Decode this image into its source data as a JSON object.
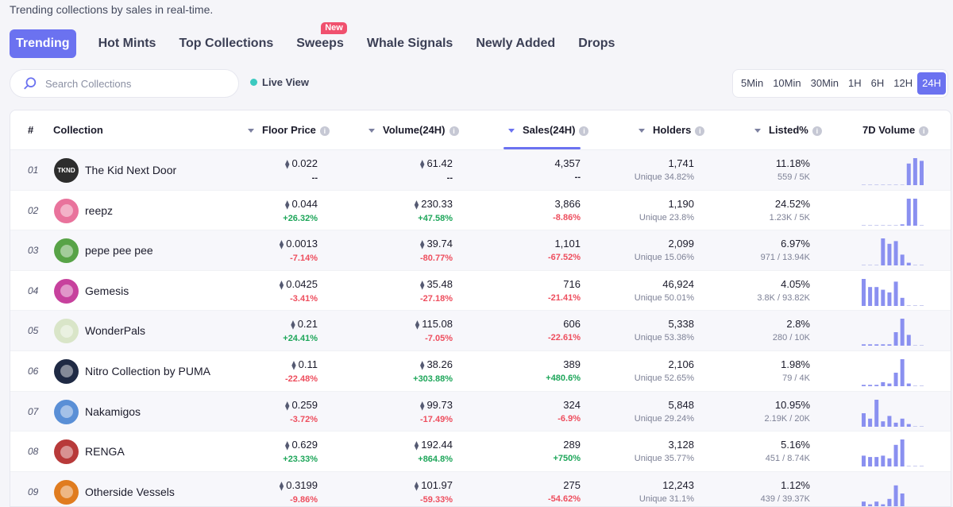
{
  "subtitle": "Trending collections by sales in real-time.",
  "tabs": [
    {
      "label": "Trending",
      "active": true
    },
    {
      "label": "Hot Mints"
    },
    {
      "label": "Top Collections"
    },
    {
      "label": "Sweeps",
      "badge": "New"
    },
    {
      "label": "Whale Signals"
    },
    {
      "label": "Newly Added"
    },
    {
      "label": "Drops"
    }
  ],
  "search": {
    "placeholder": "Search Collections",
    "value": ""
  },
  "live_view": "Live View",
  "timeframes": [
    "5Min",
    "10Min",
    "30Min",
    "1H",
    "6H",
    "12H",
    "24H"
  ],
  "active_timeframe": "24H",
  "columns": {
    "rank": "#",
    "collection": "Collection",
    "floor": "Floor Price",
    "volume": "Volume(24H)",
    "sales": "Sales(24H)",
    "holders": "Holders",
    "listed": "Listed%",
    "vol7d": "7D Volume"
  },
  "sorted_column": "sales",
  "colors": {
    "accent": "#6b72f0",
    "positive": "#1ea65a",
    "negative": "#ee4e5e",
    "bar": "#8a90f0"
  },
  "rows": [
    {
      "rank": "01",
      "name": "The Kid Next Door",
      "avatar_text": "TKND",
      "avatar_color": "#2d2d2d",
      "floor": "0.022",
      "floor_change": "--",
      "volume": "61.42",
      "volume_change": "--",
      "sales": "4,357",
      "sales_change": "--",
      "holders": "1,741",
      "unique": "Unique 34.82%",
      "listed": "11.18%",
      "listed_detail": "559 / 5K",
      "spark": [
        0,
        0,
        0,
        0,
        0,
        0,
        0,
        0.8,
        1.0,
        0.9
      ]
    },
    {
      "rank": "02",
      "name": "reepz",
      "avatar_text": "",
      "avatar_color": "#e9739c",
      "floor": "0.044",
      "floor_change": "+26.32%",
      "volume": "230.33",
      "volume_change": "+47.58%",
      "sales": "3,866",
      "sales_change": "-8.86%",
      "holders": "1,190",
      "unique": "Unique 23.8%",
      "listed": "24.52%",
      "listed_detail": "1.23K / 5K",
      "spark": [
        0,
        0,
        0,
        0,
        0,
        0,
        0.05,
        1.0,
        1.0,
        0
      ]
    },
    {
      "rank": "03",
      "name": "pepe pee pee",
      "avatar_text": "",
      "avatar_color": "#58a347",
      "floor": "0.0013",
      "floor_change": "-7.14%",
      "volume": "39.74",
      "volume_change": "-80.77%",
      "sales": "1,101",
      "sales_change": "-67.52%",
      "holders": "2,099",
      "unique": "Unique 15.06%",
      "listed": "6.97%",
      "listed_detail": "971 / 13.94K",
      "spark": [
        0,
        0,
        0,
        1.0,
        0.8,
        0.9,
        0.4,
        0.1,
        0,
        0
      ]
    },
    {
      "rank": "04",
      "name": "Gemesis",
      "avatar_text": "",
      "avatar_color": "#c7419d",
      "floor": "0.0425",
      "floor_change": "-3.41%",
      "volume": "35.48",
      "volume_change": "-27.18%",
      "sales": "716",
      "sales_change": "-21.41%",
      "holders": "46,924",
      "unique": "Unique 50.01%",
      "listed": "4.05%",
      "listed_detail": "3.8K / 93.82K",
      "spark": [
        1.0,
        0.7,
        0.7,
        0.6,
        0.5,
        0.9,
        0.3,
        0,
        0,
        0
      ]
    },
    {
      "rank": "05",
      "name": "WonderPals",
      "avatar_text": "",
      "avatar_color": "#d9e5c8",
      "floor": "0.21",
      "floor_change": "+24.41%",
      "volume": "115.08",
      "volume_change": "-7.05%",
      "sales": "606",
      "sales_change": "-22.61%",
      "holders": "5,338",
      "unique": "Unique 53.38%",
      "listed": "2.8%",
      "listed_detail": "280 / 10K",
      "spark": [
        0.05,
        0.05,
        0.05,
        0.05,
        0.05,
        0.5,
        1.0,
        0.4,
        0,
        0
      ]
    },
    {
      "rank": "06",
      "name": "Nitro Collection by PUMA",
      "avatar_text": "",
      "avatar_color": "#1f2a44",
      "floor": "0.11",
      "floor_change": "-22.48%",
      "volume": "38.26",
      "volume_change": "+303.88%",
      "sales": "389",
      "sales_change": "+480.6%",
      "holders": "2,106",
      "unique": "Unique 52.65%",
      "listed": "1.98%",
      "listed_detail": "79 / 4K",
      "spark": [
        0.05,
        0.05,
        0.05,
        0.15,
        0.1,
        0.5,
        1.0,
        0.1,
        0,
        0
      ]
    },
    {
      "rank": "07",
      "name": "Nakamigos",
      "avatar_text": "",
      "avatar_color": "#5a8fd6",
      "floor": "0.259",
      "floor_change": "-3.72%",
      "volume": "99.73",
      "volume_change": "-17.49%",
      "sales": "324",
      "sales_change": "-6.9%",
      "holders": "5,848",
      "unique": "Unique 29.24%",
      "listed": "10.95%",
      "listed_detail": "2.19K / 20K",
      "spark": [
        0.5,
        0.3,
        1.0,
        0.2,
        0.4,
        0.15,
        0.3,
        0.1,
        0,
        0
      ]
    },
    {
      "rank": "08",
      "name": "RENGA",
      "avatar_text": "",
      "avatar_color": "#b83a3a",
      "floor": "0.629",
      "floor_change": "+23.33%",
      "volume": "192.44",
      "volume_change": "+864.8%",
      "sales": "289",
      "sales_change": "+750%",
      "holders": "3,128",
      "unique": "Unique 35.77%",
      "listed": "5.16%",
      "listed_detail": "451 / 8.74K",
      "spark": [
        0.4,
        0.35,
        0.35,
        0.4,
        0.3,
        0.8,
        1.0,
        0,
        0,
        0
      ]
    },
    {
      "rank": "09",
      "name": "Otherside Vessels",
      "avatar_text": "",
      "avatar_color": "#e07c1f",
      "floor": "0.3199",
      "floor_change": "-9.86%",
      "volume": "101.97",
      "volume_change": "-59.33%",
      "sales": "275",
      "sales_change": "-54.62%",
      "holders": "12,243",
      "unique": "Unique 31.1%",
      "listed": "1.12%",
      "listed_detail": "439 / 39.37K",
      "spark": [
        0.2,
        0.1,
        0.2,
        0.1,
        0.3,
        0.8,
        0.5,
        0,
        0,
        0
      ]
    }
  ]
}
